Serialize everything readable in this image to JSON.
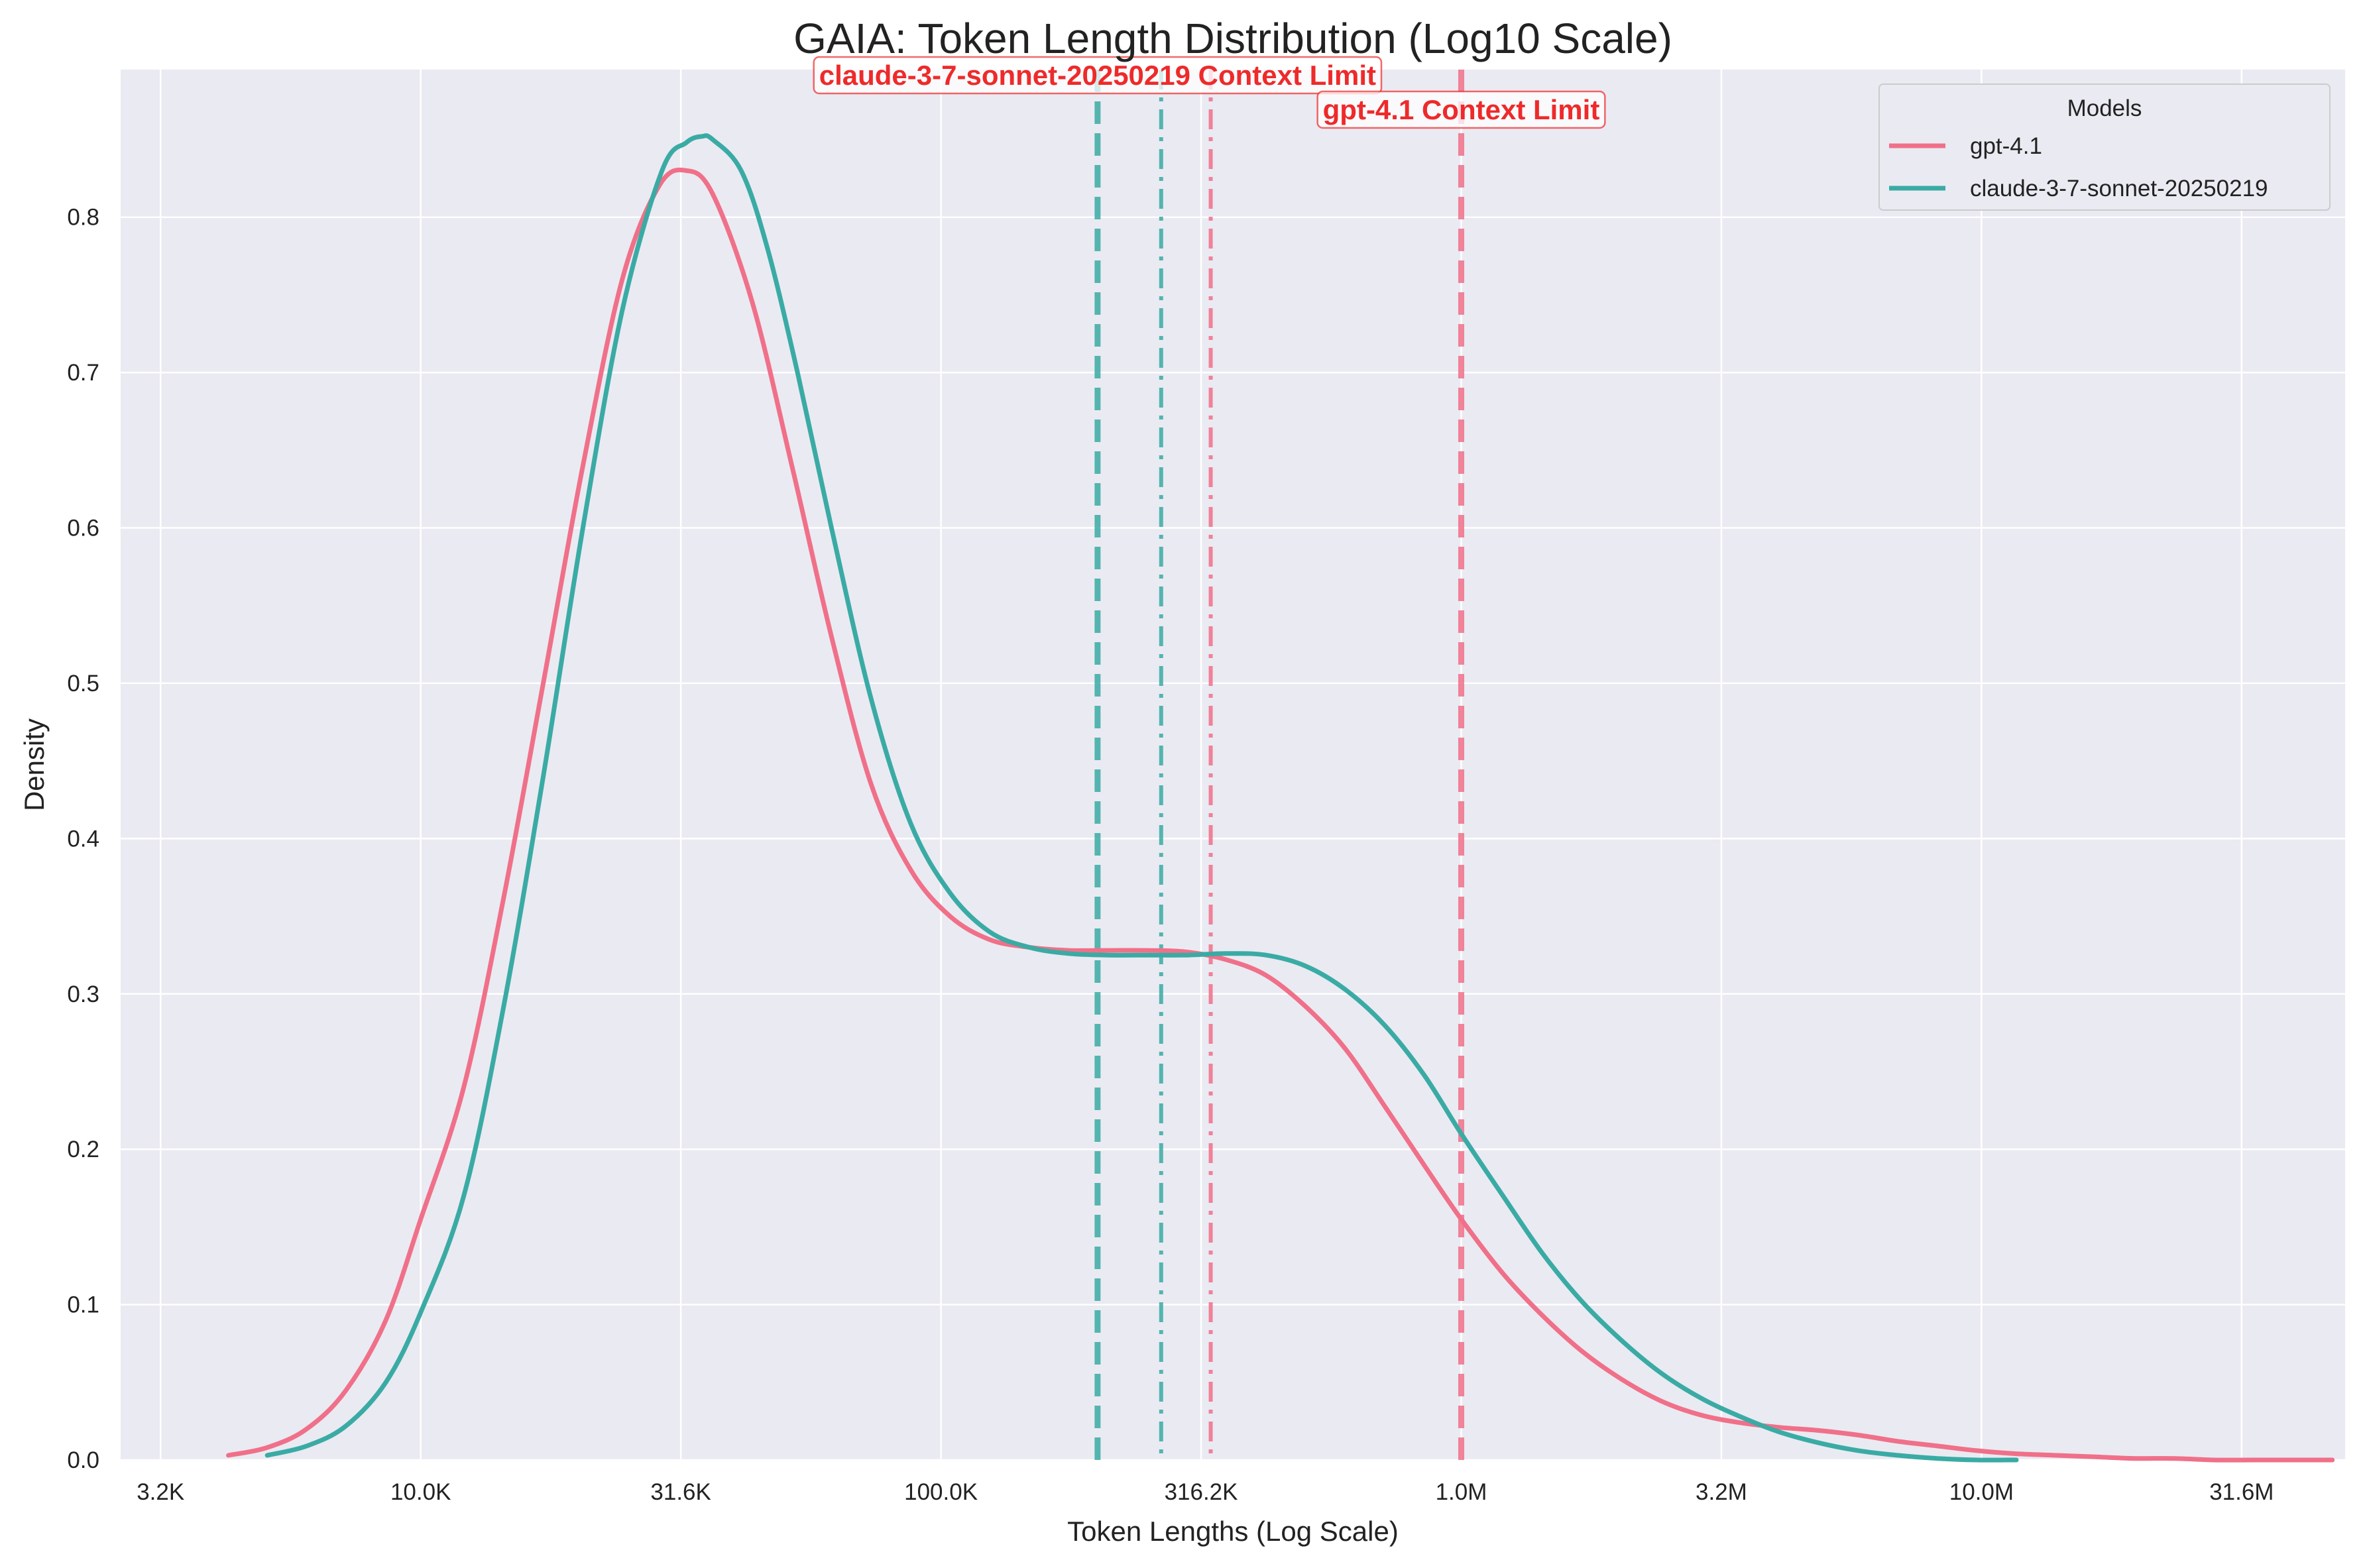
{
  "chart_data": {
    "type": "line",
    "title": "GAIA: Token Length Distribution (Log10 Scale)",
    "xlabel": "Token Lengths (Log Scale)",
    "ylabel": "Density",
    "x_scale": "log10",
    "xlim": [
      2650,
      50000000
    ],
    "ylim": [
      0,
      0.895
    ],
    "grid": true,
    "legend": {
      "title": "Models",
      "placement": "top-right"
    },
    "x_ticks": [
      {
        "value": 3162,
        "label": "3.2K"
      },
      {
        "value": 10000,
        "label": "10.0K"
      },
      {
        "value": 31623,
        "label": "31.6K"
      },
      {
        "value": 100000,
        "label": "100.0K"
      },
      {
        "value": 316228,
        "label": "316.2K"
      },
      {
        "value": 1000000,
        "label": "1.0M"
      },
      {
        "value": 3162278,
        "label": "3.2M"
      },
      {
        "value": 10000000,
        "label": "10.0M"
      },
      {
        "value": 31622777,
        "label": "31.6M"
      }
    ],
    "y_ticks": [
      {
        "value": 0.0,
        "label": "0.0"
      },
      {
        "value": 0.1,
        "label": "0.1"
      },
      {
        "value": 0.2,
        "label": "0.2"
      },
      {
        "value": 0.3,
        "label": "0.3"
      },
      {
        "value": 0.4,
        "label": "0.4"
      },
      {
        "value": 0.5,
        "label": "0.5"
      },
      {
        "value": 0.6,
        "label": "0.6"
      },
      {
        "value": 0.7,
        "label": "0.7"
      },
      {
        "value": 0.8,
        "label": "0.8"
      }
    ],
    "series": [
      {
        "name": "gpt-4.1",
        "color": "#f07089",
        "x": [
          4270,
          5070,
          6040,
          7190,
          8570,
          10000,
          12100,
          14400,
          17200,
          20500,
          24400,
          28700,
          32400,
          36400,
          43400,
          51700,
          61600,
          73400,
          87400,
          104100,
          124000,
          147700,
          175900,
          209500,
          249400,
          297100,
          353800,
          421400,
          501900,
          597700,
          711900,
          847900,
          1000000,
          1202900,
          1432600,
          1706300,
          2032300,
          2420400,
          2882700,
          3433300,
          4089000,
          4870000,
          5800200,
          6908000,
          8227400,
          9798900,
          11670300,
          13899600,
          16554400,
          19716500,
          23482400,
          27967600,
          33309400,
          39671600,
          47249000
        ],
        "values": [
          0.003,
          0.008,
          0.02,
          0.045,
          0.09,
          0.155,
          0.24,
          0.36,
          0.5,
          0.64,
          0.76,
          0.82,
          0.83,
          0.815,
          0.745,
          0.64,
          0.53,
          0.435,
          0.38,
          0.35,
          0.335,
          0.33,
          0.328,
          0.328,
          0.328,
          0.327,
          0.322,
          0.312,
          0.292,
          0.265,
          0.228,
          0.19,
          0.155,
          0.12,
          0.093,
          0.07,
          0.052,
          0.038,
          0.029,
          0.024,
          0.021,
          0.019,
          0.016,
          0.012,
          0.009,
          0.006,
          0.004,
          0.003,
          0.002,
          0.001,
          0.001,
          0.0,
          0.0,
          0.0,
          0.0
        ],
        "context_limit": 1000000,
        "reference_line": 330000
      },
      {
        "name": "claude-3-7-sonnet-20250219",
        "color": "#3aaba4",
        "x": [
          5070,
          6040,
          7190,
          8570,
          10000,
          12100,
          14400,
          17200,
          20500,
          24400,
          29100,
          32400,
          34700,
          36400,
          41300,
          46400,
          53000,
          61600,
          73400,
          87400,
          104100,
          124000,
          147700,
          175900,
          209500,
          249400,
          297100,
          353800,
          421400,
          501900,
          597700,
          711900,
          847900,
          1000000,
          1202900,
          1432600,
          1706300,
          2032300,
          2420400,
          2882700,
          3433300,
          4089000,
          4870000,
          5800200,
          6908000,
          8227400,
          9798900,
          11670300
        ],
        "values": [
          0.003,
          0.009,
          0.022,
          0.05,
          0.095,
          0.17,
          0.29,
          0.44,
          0.6,
          0.74,
          0.83,
          0.848,
          0.852,
          0.85,
          0.83,
          0.78,
          0.7,
          0.6,
          0.49,
          0.41,
          0.365,
          0.34,
          0.33,
          0.326,
          0.325,
          0.325,
          0.325,
          0.326,
          0.325,
          0.318,
          0.303,
          0.28,
          0.248,
          0.21,
          0.17,
          0.133,
          0.102,
          0.077,
          0.056,
          0.04,
          0.028,
          0.018,
          0.011,
          0.006,
          0.003,
          0.001,
          0.0,
          0.0
        ],
        "context_limit": 200000,
        "reference_line": 265000
      }
    ],
    "annotations": [
      {
        "text": "claude-3-7-sonnet-20250219 Context Limit",
        "x": 200000,
        "color": "#ee2a2a"
      },
      {
        "text": "gpt-4.1 Context Limit",
        "x": 1000000,
        "color": "#ee2a2a"
      }
    ]
  }
}
